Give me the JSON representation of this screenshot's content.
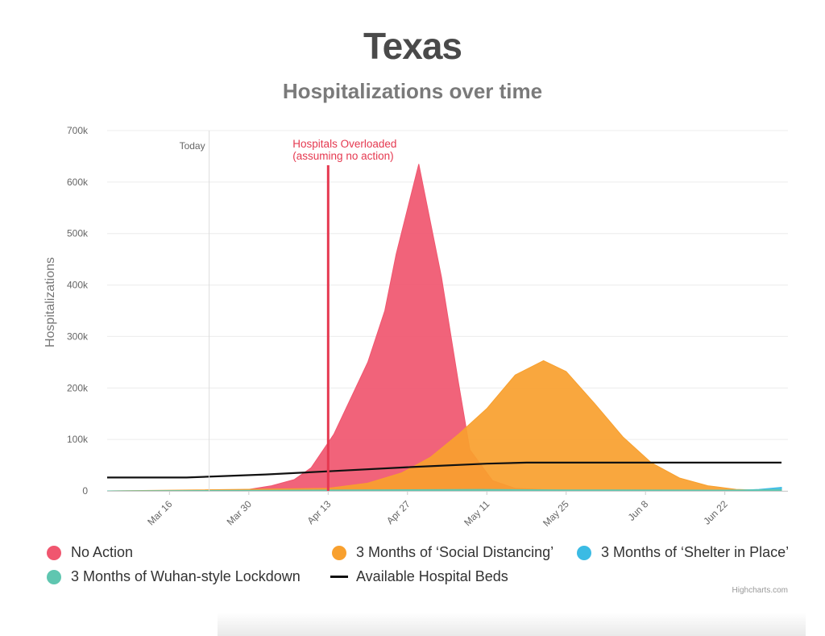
{
  "chart_data": {
    "type": "area",
    "title": "Texas",
    "subtitle": "Hospitalizations over time",
    "ylabel": "Hospitalizations",
    "xlabel": "",
    "x_start": "2020-03-05",
    "x_end": "2020-07-02",
    "ylim": [
      0,
      700000
    ],
    "y_ticks": [
      0,
      100000,
      200000,
      300000,
      400000,
      500000,
      600000,
      700000
    ],
    "y_tick_labels": [
      "0",
      "100k",
      "200k",
      "300k",
      "400k",
      "500k",
      "600k",
      "700k"
    ],
    "x_ticks": [
      "2020-03-16",
      "2020-03-30",
      "2020-04-13",
      "2020-04-27",
      "2020-05-11",
      "2020-05-25",
      "2020-06-08",
      "2020-06-22"
    ],
    "x_tick_labels": [
      "Mar 16",
      "Mar 30",
      "Apr 13",
      "Apr 27",
      "May 11",
      "May 25",
      "Jun 8",
      "Jun 22"
    ],
    "grid": true,
    "legend_position": "bottom",
    "series": [
      {
        "name": "No Action",
        "type": "area",
        "color": "#f0566f",
        "points": [
          [
            "2020-03-05",
            0
          ],
          [
            "2020-03-23",
            500
          ],
          [
            "2020-03-30",
            3000
          ],
          [
            "2020-04-03",
            10000
          ],
          [
            "2020-04-07",
            22000
          ],
          [
            "2020-04-10",
            45000
          ],
          [
            "2020-04-14",
            110000
          ],
          [
            "2020-04-17",
            180000
          ],
          [
            "2020-04-20",
            250000
          ],
          [
            "2020-04-23",
            350000
          ],
          [
            "2020-04-25",
            460000
          ],
          [
            "2020-04-29",
            635000
          ],
          [
            "2020-05-03",
            415000
          ],
          [
            "2020-05-06",
            210000
          ],
          [
            "2020-05-08",
            80000
          ],
          [
            "2020-05-12",
            20000
          ],
          [
            "2020-05-16",
            5000
          ],
          [
            "2020-05-25",
            0
          ],
          [
            "2020-07-02",
            0
          ]
        ]
      },
      {
        "name": "3 Months of ‘Social Distancing’",
        "type": "area",
        "color": "#f8a02e",
        "points": [
          [
            "2020-03-05",
            0
          ],
          [
            "2020-04-13",
            5000
          ],
          [
            "2020-04-20",
            15000
          ],
          [
            "2020-04-26",
            35000
          ],
          [
            "2020-05-01",
            65000
          ],
          [
            "2020-05-06",
            110000
          ],
          [
            "2020-05-11",
            160000
          ],
          [
            "2020-05-16",
            225000
          ],
          [
            "2020-05-21",
            253000
          ],
          [
            "2020-05-25",
            232000
          ],
          [
            "2020-05-30",
            170000
          ],
          [
            "2020-06-04",
            105000
          ],
          [
            "2020-06-09",
            55000
          ],
          [
            "2020-06-14",
            25000
          ],
          [
            "2020-06-19",
            10000
          ],
          [
            "2020-06-24",
            3000
          ],
          [
            "2020-07-02",
            0
          ]
        ]
      },
      {
        "name": "3 Months of ‘Shelter in Place’",
        "type": "area",
        "color": "#3bbbe4",
        "points": [
          [
            "2020-03-05",
            0
          ],
          [
            "2020-06-22",
            0
          ],
          [
            "2020-06-28",
            3000
          ],
          [
            "2020-07-02",
            7000
          ]
        ]
      },
      {
        "name": "3 Months of Wuhan-style Lockdown",
        "type": "area",
        "color": "#5fc6b0",
        "points": [
          [
            "2020-03-05",
            0
          ],
          [
            "2020-04-20",
            2000
          ],
          [
            "2020-05-10",
            3000
          ],
          [
            "2020-05-25",
            2000
          ],
          [
            "2020-06-22",
            1500
          ],
          [
            "2020-07-02",
            2500
          ]
        ]
      },
      {
        "name": "Available Hospital Beds",
        "type": "line",
        "color": "#111111",
        "points": [
          [
            "2020-03-05",
            26000
          ],
          [
            "2020-03-19",
            26000
          ],
          [
            "2020-03-26",
            29000
          ],
          [
            "2020-04-02",
            32000
          ],
          [
            "2020-04-13",
            38000
          ],
          [
            "2020-04-27",
            46000
          ],
          [
            "2020-05-11",
            53000
          ],
          [
            "2020-05-18",
            55000
          ],
          [
            "2020-07-02",
            55000
          ]
        ]
      }
    ],
    "plot_lines": [
      {
        "label": "Today",
        "date": "2020-03-23",
        "color": "#dddddd"
      },
      {
        "label": "Hospitals Overloaded (assuming no action)",
        "label_lines": [
          "Hospitals Overloaded",
          "(assuming no action)"
        ],
        "date": "2020-04-13",
        "color": "#e53950"
      }
    ]
  },
  "legend": {
    "items": [
      {
        "label": "No Action",
        "color": "#f0566f"
      },
      {
        "label": "3 Months of ‘Social Distancing’",
        "color": "#f8a02e"
      },
      {
        "label": "3 Months of ‘Shelter in Place’",
        "color": "#3bbbe4"
      },
      {
        "label": "3 Months of Wuhan-style Lockdown",
        "color": "#5fc6b0"
      },
      {
        "label": "Available Hospital Beds",
        "color": "#111111"
      }
    ]
  },
  "credits": "Highcharts.com"
}
